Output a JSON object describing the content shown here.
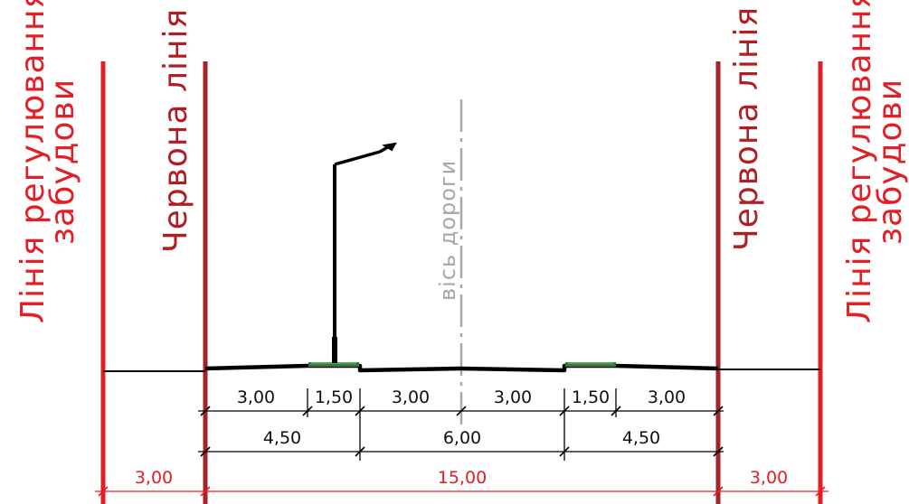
{
  "labels": {
    "building_line": "Лінія регулювання",
    "building_line_2": "забудови",
    "red_line": "Червона лінія",
    "road_axis": "вісь дороги"
  },
  "dimensions": {
    "row1": [
      "3,00",
      "1,50",
      "3,00",
      "3,00",
      "1,50",
      "3,00"
    ],
    "row2": [
      "4,50",
      "6,00",
      "4,50"
    ],
    "row3": [
      "3,00",
      "15,00",
      "3,00"
    ]
  },
  "colors": {
    "building_line": "#e31e24",
    "red_line": "#a3232b",
    "road_axis": "#a8a8a8",
    "ground": "#000000",
    "lawn": "#2e7d32"
  }
}
